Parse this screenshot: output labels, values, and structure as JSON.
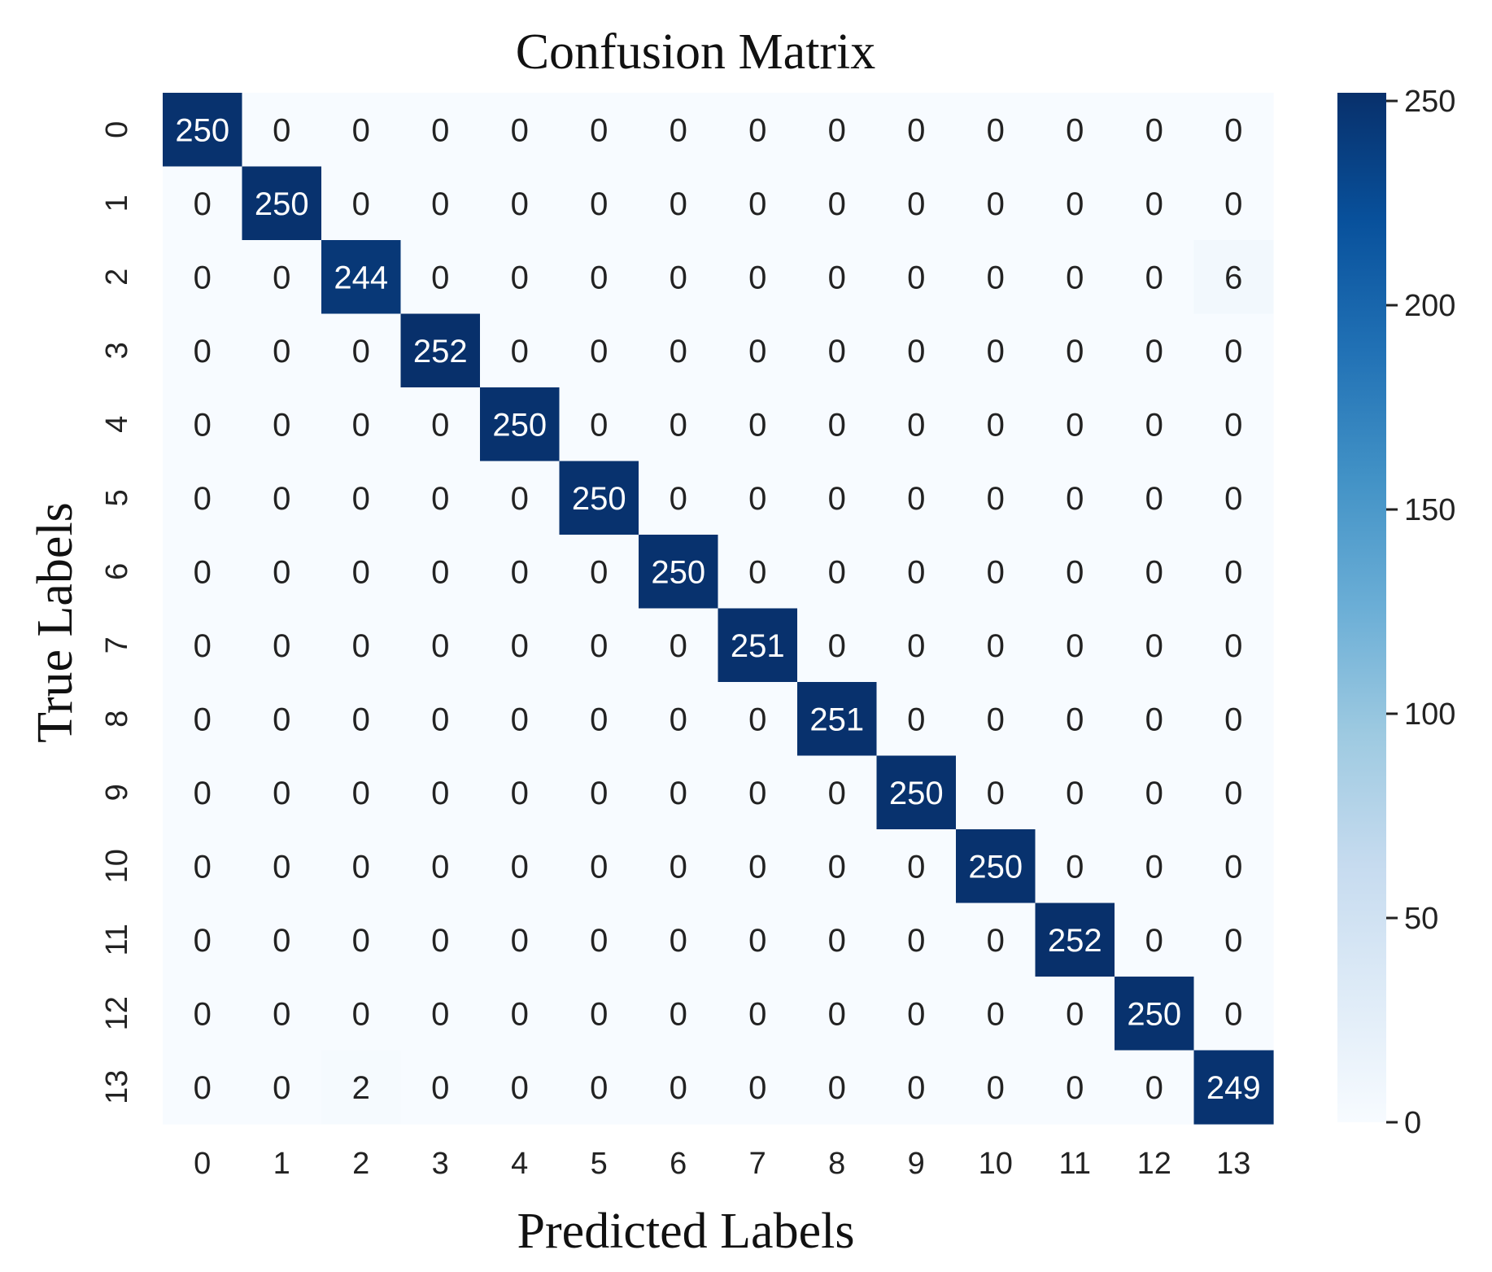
{
  "chart_data": {
    "type": "heatmap",
    "title": "Confusion Matrix",
    "xlabel": "Predicted Labels",
    "ylabel": "True Labels",
    "x_categories": [
      "0",
      "1",
      "2",
      "3",
      "4",
      "5",
      "6",
      "7",
      "8",
      "9",
      "10",
      "11",
      "12",
      "13"
    ],
    "y_categories": [
      "0",
      "1",
      "2",
      "3",
      "4",
      "5",
      "6",
      "7",
      "8",
      "9",
      "10",
      "11",
      "12",
      "13"
    ],
    "matrix": [
      [
        250,
        0,
        0,
        0,
        0,
        0,
        0,
        0,
        0,
        0,
        0,
        0,
        0,
        0
      ],
      [
        0,
        250,
        0,
        0,
        0,
        0,
        0,
        0,
        0,
        0,
        0,
        0,
        0,
        0
      ],
      [
        0,
        0,
        244,
        0,
        0,
        0,
        0,
        0,
        0,
        0,
        0,
        0,
        0,
        6
      ],
      [
        0,
        0,
        0,
        252,
        0,
        0,
        0,
        0,
        0,
        0,
        0,
        0,
        0,
        0
      ],
      [
        0,
        0,
        0,
        0,
        250,
        0,
        0,
        0,
        0,
        0,
        0,
        0,
        0,
        0
      ],
      [
        0,
        0,
        0,
        0,
        0,
        250,
        0,
        0,
        0,
        0,
        0,
        0,
        0,
        0
      ],
      [
        0,
        0,
        0,
        0,
        0,
        0,
        250,
        0,
        0,
        0,
        0,
        0,
        0,
        0
      ],
      [
        0,
        0,
        0,
        0,
        0,
        0,
        0,
        251,
        0,
        0,
        0,
        0,
        0,
        0
      ],
      [
        0,
        0,
        0,
        0,
        0,
        0,
        0,
        0,
        251,
        0,
        0,
        0,
        0,
        0
      ],
      [
        0,
        0,
        0,
        0,
        0,
        0,
        0,
        0,
        0,
        250,
        0,
        0,
        0,
        0
      ],
      [
        0,
        0,
        0,
        0,
        0,
        0,
        0,
        0,
        0,
        0,
        250,
        0,
        0,
        0
      ],
      [
        0,
        0,
        0,
        0,
        0,
        0,
        0,
        0,
        0,
        0,
        0,
        252,
        0,
        0
      ],
      [
        0,
        0,
        0,
        0,
        0,
        0,
        0,
        0,
        0,
        0,
        0,
        0,
        250,
        0
      ],
      [
        0,
        0,
        2,
        0,
        0,
        0,
        0,
        0,
        0,
        0,
        0,
        0,
        0,
        249
      ]
    ],
    "colorbar": {
      "min": 0,
      "max": 252,
      "ticks": [
        0,
        50,
        100,
        150,
        200,
        250
      ],
      "colormap": "Blues",
      "low_color": "#f7fbff",
      "high_color": "#08306b"
    },
    "grid": false,
    "legend": "colorbar-right"
  }
}
